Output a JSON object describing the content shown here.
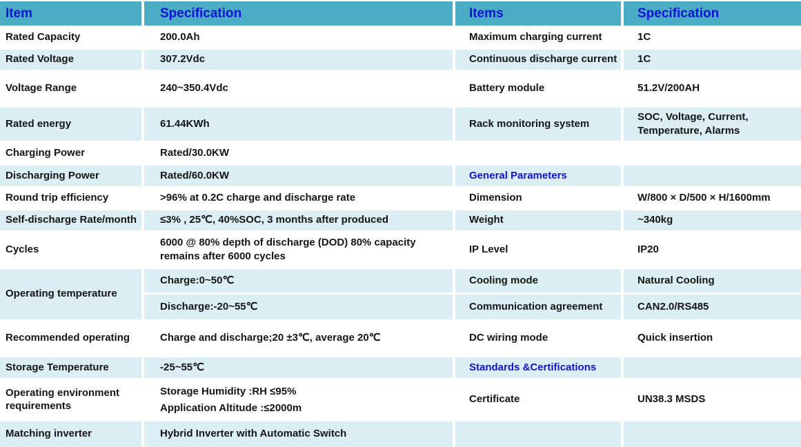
{
  "columns": {
    "item": "Item",
    "specification_left": "Specification",
    "items": "Items",
    "specification_right": "Specification"
  },
  "rows": [
    {
      "left_item": "Rated Capacity",
      "left_spec": "200.0Ah",
      "right_item": "Maximum charging current",
      "right_spec": "1C"
    },
    {
      "left_item": "Rated Voltage",
      "left_spec": "307.2Vdc",
      "right_item": "Continuous discharge current",
      "right_spec": "1C"
    },
    {
      "left_item": "Voltage Range",
      "left_spec": "240~350.4Vdc",
      "right_item": "Battery module",
      "right_spec": "51.2V/200AH"
    },
    {
      "left_item": "Rated  energy",
      "left_spec": "61.44KWh",
      "right_item": "Rack monitoring system",
      "right_spec": "SOC, Voltage, Current,\nTemperature, Alarms"
    },
    {
      "left_item": "Charging Power",
      "left_spec": "Rated/30.0KW",
      "right_item": "",
      "right_spec": ""
    },
    {
      "left_item": "Discharging Power",
      "left_spec": "Rated/60.0KW",
      "right_item": "General Parameters",
      "right_spec": "",
      "right_is_section": true
    },
    {
      "left_item": "Round trip efficiency",
      "left_spec": ">96% at 0.2C charge and discharge rate",
      "right_item": "Dimension",
      "right_spec": "W/800 × D/500 × H/1600mm"
    },
    {
      "left_item": "Self-discharge Rate/month",
      "left_spec": "≤3% , 25℃, 40%SOC, 3 months after produced",
      "right_item": "Weight",
      "right_spec": "~340kg"
    },
    {
      "left_item": "Cycles",
      "left_spec": "6000 @ 80% depth of discharge (DOD) 80% capacity remains after 6000 cycles",
      "right_item": "IP Level",
      "right_spec": "IP20"
    },
    {
      "left_item": "Operating temperature",
      "left_spec": "Charge:0~50℃",
      "right_item": "Cooling mode",
      "right_spec": "Natural Cooling"
    },
    {
      "left_spec": "Discharge:-20~55℃",
      "right_item": "Communication agreement",
      "right_spec": "CAN2.0/RS485"
    },
    {
      "left_item": "Recommended operating",
      "left_spec": "Charge and discharge;20 ±3℃, average 20℃",
      "right_item": "DC wiring mode",
      "right_spec": "Quick insertion"
    },
    {
      "left_item": "Storage Temperature",
      "left_spec": "-25~55℃",
      "right_item": "Standards &Certifications",
      "right_spec": "",
      "right_is_section": true
    },
    {
      "left_item": "Operating environment requirements",
      "left_spec": "Storage Humidity :RH ≤95%\nApplication Altitude :≤2000m",
      "right_item": "Certificate",
      "right_spec": "UN38.3 MSDS"
    },
    {
      "left_item": "Matching inverter",
      "left_spec": "Hybrid Inverter with Automatic Switch",
      "right_item": "",
      "right_spec": ""
    }
  ],
  "colors": {
    "header_bg": "#4bacc6",
    "alt_row_bg": "#daeef3",
    "header_text": "#1112d8",
    "section_text": "#1112d8",
    "body_text": "#151515"
  }
}
